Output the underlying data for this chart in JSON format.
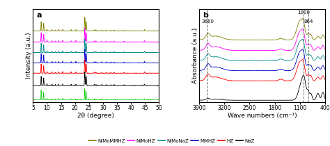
{
  "panel_a_label": "a",
  "panel_b_label": "b",
  "series_names": [
    "NiMoMMHZ",
    "NiMoHZ",
    "NiMoNaZ",
    "MMHZ",
    "HZ",
    "NaZ"
  ],
  "series_colors": [
    "#808000",
    "#ff00ff",
    "#008b8b",
    "#0000cc",
    "#ff0000",
    "#000000"
  ],
  "ref_color": "#00cc00",
  "legend_names": [
    "NiMoMMHZ",
    "NiMoHZ",
    "NiMoNaZ",
    "MMHZ",
    "HZ",
    "NaZ"
  ],
  "xrd_xlim": [
    5,
    50
  ],
  "xrd_xticks": [
    5,
    10,
    15,
    20,
    25,
    30,
    35,
    40,
    45,
    50
  ],
  "xrd_xlabel": "2θ (degree)",
  "xrd_ylabel": "Intensity (a.u.)",
  "ftir_xlim": [
    3900,
    400
  ],
  "ftir_xticks": [
    3900,
    3200,
    2500,
    1800,
    1100,
    400
  ],
  "ftir_xlabel": "Wave numbers (cm⁻¹)",
  "ftir_ylabel": "Absorbance (a.u.)",
  "ftir_vlines": [
    3660,
    1000,
    864
  ],
  "ftir_vline_labels": [
    "3660",
    "1000",
    "864"
  ]
}
